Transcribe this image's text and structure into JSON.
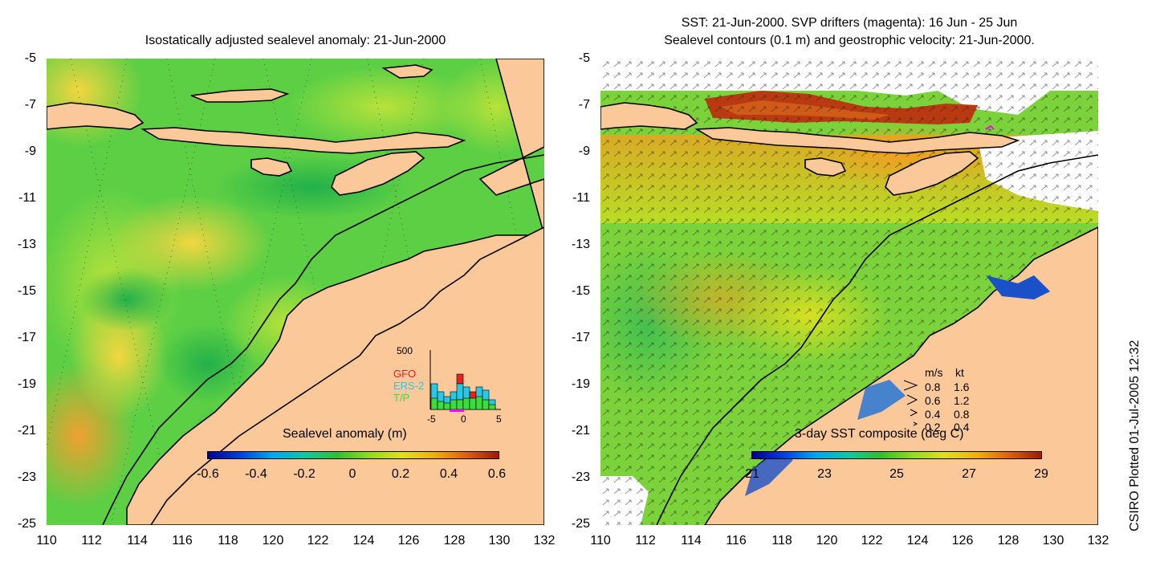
{
  "left_panel": {
    "title": "Isostatically adjusted sealevel anomaly: 21-Jun-2000",
    "colorbar_title": "Sealevel anomaly (m)",
    "colorbar_ticks": [
      "-0.6",
      "-0.4",
      "-0.2",
      "0",
      "0.2",
      "0.4",
      "0.6"
    ],
    "histogram": {
      "ymax_label": "500",
      "x_ticks": [
        "-5",
        "0",
        "5"
      ],
      "legend": [
        {
          "label": "GFO",
          "color": "#e8231f"
        },
        {
          "label": "ERS-2",
          "color": "#28c8e6"
        },
        {
          "label": "T/P",
          "color": "#3ddc3d"
        }
      ]
    }
  },
  "right_panel": {
    "title_line1": "SST: 21-Jun-2000. SVP drifters (magenta): 16 Jun - 25 Jun",
    "title_line2": "Sealevel contours (0.1 m) and geostrophic velocity: 21-Jun-2000.",
    "colorbar_title": "3-day SST composite (deg C)",
    "colorbar_ticks": [
      "21",
      "23",
      "25",
      "27",
      "29"
    ],
    "velocity_legend": {
      "header_ms": "m/s",
      "header_kt": "kt",
      "rows": [
        {
          "ms": "0.8",
          "kt": "1.6"
        },
        {
          "ms": "0.6",
          "kt": "1.2"
        },
        {
          "ms": "0.4",
          "kt": "0.8"
        },
        {
          "ms": "0.2",
          "kt": "0.4"
        }
      ]
    }
  },
  "axes": {
    "y_ticks": [
      "-5",
      "-7",
      "-9",
      "-11",
      "-13",
      "-15",
      "-17",
      "-19",
      "-21",
      "-23",
      "-25"
    ],
    "x_ticks": [
      "110",
      "112",
      "114",
      "116",
      "118",
      "120",
      "122",
      "124",
      "126",
      "128",
      "130",
      "132"
    ]
  },
  "credit": "CSIRO Plotted 01-Jul-2005 12:32",
  "colors": {
    "land": "#fbc89a",
    "ocean_green": "#44c94a",
    "ocean_yellow": "#c8e436",
    "sst_orange": "#f0a020",
    "sst_red": "#b83a10"
  }
}
